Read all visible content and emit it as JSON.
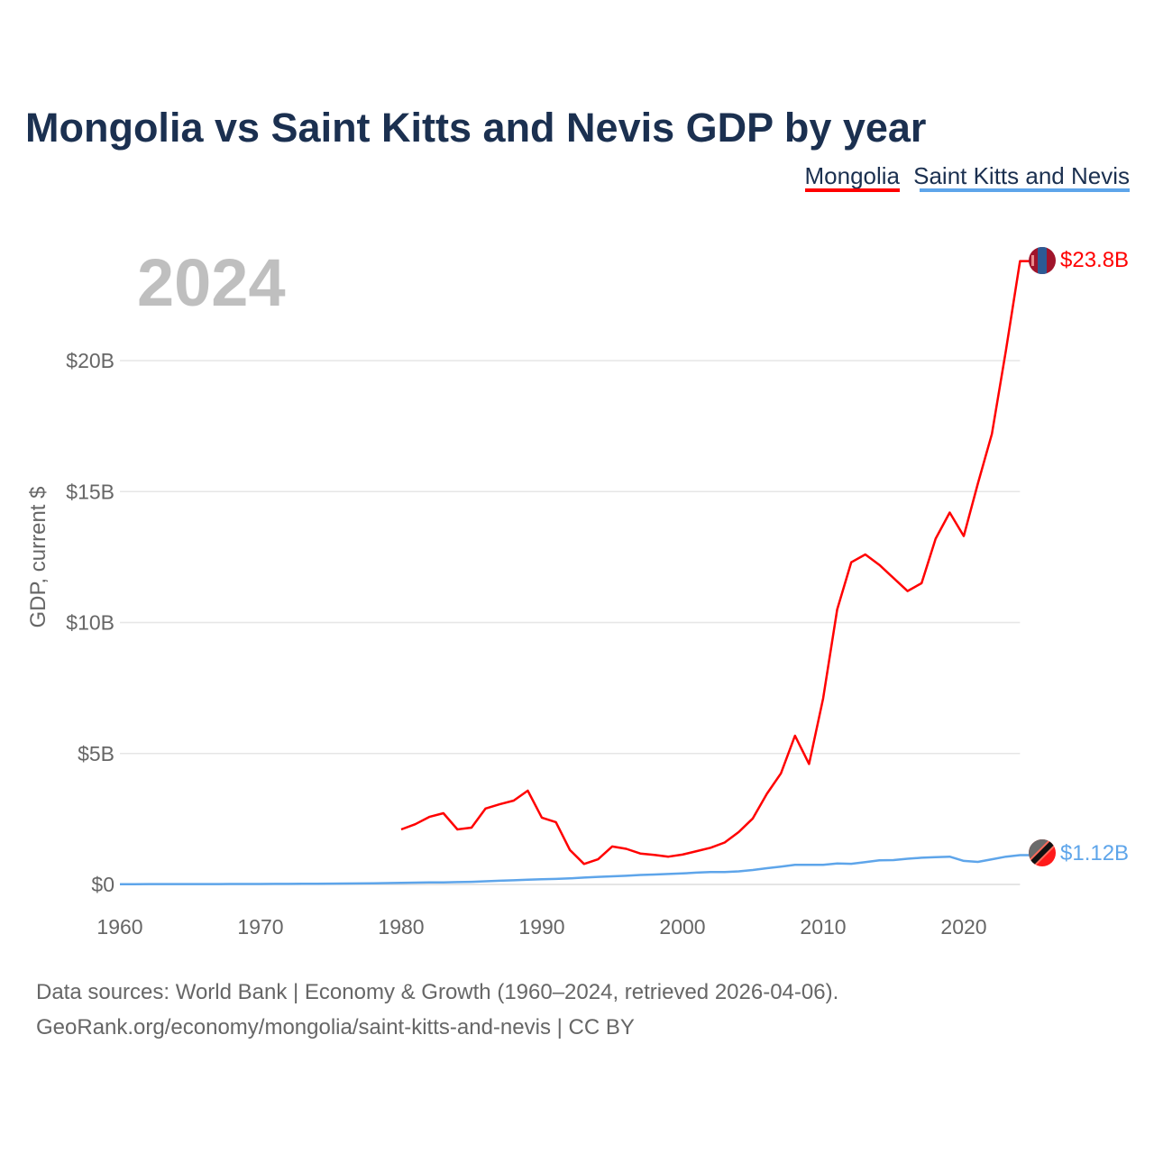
{
  "chart_data": {
    "type": "line",
    "title": "Mongolia vs Saint Kitts and Nevis GDP by year",
    "current_year": "2024",
    "ylabel": "GDP, current $",
    "xlabel": "",
    "xlim": [
      1960,
      2024
    ],
    "ylim": [
      0,
      24
    ],
    "x_ticks": [
      1960,
      1970,
      1980,
      1990,
      2000,
      2010,
      2020
    ],
    "x_tick_labels": [
      "1960",
      "1970",
      "1980",
      "1990",
      "2000",
      "2010",
      "2020"
    ],
    "y_ticks": [
      0,
      5,
      10,
      15,
      20
    ],
    "y_tick_labels": [
      "$0",
      "$5B",
      "$10B",
      "$15B",
      "$20B"
    ],
    "grid": true,
    "legend_placement": "top-right",
    "units": "billions of current US$",
    "series": [
      {
        "name": "Mongolia",
        "color": "#ff0000",
        "end_label": "$23.8B",
        "x": [
          1980,
          1981,
          1982,
          1983,
          1984,
          1985,
          1986,
          1987,
          1988,
          1989,
          1990,
          1991,
          1992,
          1993,
          1994,
          1995,
          1996,
          1997,
          1998,
          1999,
          2000,
          2001,
          2002,
          2003,
          2004,
          2005,
          2006,
          2007,
          2008,
          2009,
          2010,
          2011,
          2012,
          2013,
          2014,
          2015,
          2016,
          2017,
          2018,
          2019,
          2020,
          2021,
          2022,
          2023,
          2024
        ],
        "values": [
          2.1,
          2.3,
          2.58,
          2.72,
          2.1,
          2.17,
          2.9,
          3.06,
          3.2,
          3.58,
          2.55,
          2.38,
          1.31,
          0.78,
          0.96,
          1.45,
          1.36,
          1.18,
          1.13,
          1.06,
          1.14,
          1.27,
          1.4,
          1.6,
          2.0,
          2.52,
          3.46,
          4.24,
          5.68,
          4.6,
          7.1,
          10.5,
          12.3,
          12.6,
          12.2,
          11.7,
          11.2,
          11.5,
          13.2,
          14.2,
          13.3,
          15.3,
          17.2,
          20.4,
          23.8
        ]
      },
      {
        "name": "Saint Kitts and Nevis",
        "color": "#5ea5ea",
        "end_label": "$1.12B",
        "x": [
          1960,
          1961,
          1962,
          1963,
          1964,
          1965,
          1966,
          1967,
          1968,
          1969,
          1970,
          1971,
          1972,
          1973,
          1974,
          1975,
          1976,
          1977,
          1978,
          1979,
          1980,
          1981,
          1982,
          1983,
          1984,
          1985,
          1986,
          1987,
          1988,
          1989,
          1990,
          1991,
          1992,
          1993,
          1994,
          1995,
          1996,
          1997,
          1998,
          1999,
          2000,
          2001,
          2002,
          2003,
          2004,
          2005,
          2006,
          2007,
          2008,
          2009,
          2010,
          2011,
          2012,
          2013,
          2014,
          2015,
          2016,
          2017,
          2018,
          2019,
          2020,
          2021,
          2022,
          2023,
          2024
        ],
        "values": [
          0.012,
          0.012,
          0.013,
          0.013,
          0.014,
          0.014,
          0.015,
          0.015,
          0.016,
          0.017,
          0.017,
          0.019,
          0.022,
          0.025,
          0.028,
          0.03,
          0.033,
          0.037,
          0.045,
          0.053,
          0.062,
          0.07,
          0.075,
          0.08,
          0.09,
          0.1,
          0.12,
          0.14,
          0.16,
          0.18,
          0.2,
          0.21,
          0.23,
          0.26,
          0.29,
          0.31,
          0.33,
          0.36,
          0.38,
          0.4,
          0.42,
          0.45,
          0.47,
          0.47,
          0.5,
          0.55,
          0.62,
          0.68,
          0.75,
          0.75,
          0.75,
          0.8,
          0.79,
          0.85,
          0.92,
          0.93,
          0.98,
          1.02,
          1.04,
          1.06,
          0.9,
          0.86,
          0.96,
          1.06,
          1.12
        ]
      }
    ]
  },
  "legend": {
    "items": [
      "Mongolia",
      "Saint Kitts and Nevis"
    ]
  },
  "footer": {
    "line1": "Data sources: World Bank | Economy & Growth (1960–2024, retrieved 2026-04-06).",
    "line2": "GeoRank.org/economy/mongolia/saint-kitts-and-nevis | CC BY"
  },
  "flags": [
    "mongolia-flag-icon",
    "saint-kitts-and-nevis-flag-icon"
  ]
}
